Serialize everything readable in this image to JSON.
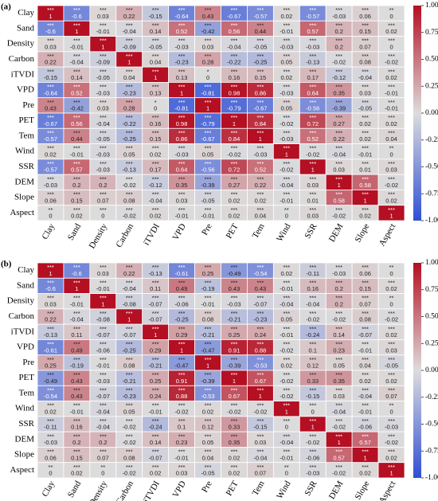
{
  "chart_data": [
    {
      "type": "heatmap",
      "panel_label": "(a)",
      "categories": [
        "Clay",
        "Sand",
        "Density",
        "Carbon",
        "iTVDI",
        "VPD",
        "Pre",
        "PET",
        "Tem",
        "Wind",
        "SSR",
        "DEM",
        "Slope",
        "Aspect"
      ],
      "values": [
        [
          1.0,
          -0.6,
          0.03,
          0.22,
          -0.15,
          -0.64,
          0.43,
          -0.67,
          -0.57,
          0.02,
          -0.57,
          -0.03,
          0.06,
          -0.0
        ],
        [
          -0.6,
          1.0,
          -0.01,
          -0.04,
          0.14,
          0.52,
          -0.42,
          0.56,
          0.44,
          -0.01,
          0.57,
          0.2,
          0.15,
          0.02
        ],
        [
          0.03,
          -0.01,
          1.0,
          -0.09,
          -0.05,
          -0.03,
          0.03,
          -0.04,
          -0.05,
          -0.03,
          -0.03,
          0.2,
          0.07,
          0.0
        ],
        [
          0.22,
          -0.04,
          -0.09,
          1.0,
          0.04,
          -0.23,
          0.28,
          -0.22,
          -0.25,
          0.05,
          -0.13,
          -0.02,
          0.08,
          -0.02
        ],
        [
          -0.15,
          0.14,
          -0.05,
          0.04,
          1.0,
          0.13,
          -0.0,
          0.16,
          0.15,
          0.02,
          0.17,
          -0.12,
          -0.04,
          0.02
        ],
        [
          -0.64,
          0.52,
          -0.03,
          -0.23,
          0.13,
          1.0,
          -0.81,
          0.98,
          0.86,
          -0.03,
          0.64,
          0.35,
          0.03,
          -0.01
        ],
        [
          0.43,
          -0.42,
          0.03,
          0.28,
          -0.0,
          -0.81,
          1.0,
          -0.79,
          -0.67,
          0.05,
          -0.56,
          -0.39,
          -0.05,
          -0.01
        ],
        [
          -0.67,
          0.56,
          -0.04,
          -0.22,
          0.16,
          0.98,
          -0.79,
          1.0,
          0.84,
          -0.02,
          0.72,
          0.27,
          0.02,
          0.02
        ],
        [
          -0.57,
          0.44,
          -0.05,
          -0.25,
          0.15,
          0.86,
          -0.67,
          0.84,
          1.0,
          -0.03,
          0.52,
          0.22,
          0.02,
          0.04
        ],
        [
          0.02,
          -0.01,
          -0.03,
          0.05,
          0.02,
          -0.03,
          0.05,
          -0.02,
          -0.03,
          1.0,
          -0.02,
          -0.04,
          -0.01,
          -0.0
        ],
        [
          -0.57,
          0.57,
          -0.03,
          -0.13,
          0.17,
          0.64,
          -0.56,
          0.72,
          0.52,
          -0.02,
          1.0,
          0.03,
          0.01,
          0.03
        ],
        [
          -0.03,
          0.2,
          0.2,
          -0.02,
          -0.12,
          0.35,
          -0.39,
          0.27,
          0.22,
          -0.04,
          0.03,
          1.0,
          0.58,
          -0.02
        ],
        [
          0.06,
          0.15,
          0.07,
          0.08,
          -0.04,
          0.03,
          -0.05,
          0.02,
          0.02,
          -0.01,
          0.01,
          0.58,
          1.0,
          0.02
        ],
        [
          -0.0,
          0.02,
          0.0,
          -0.02,
          0.02,
          -0.01,
          -0.01,
          0.02,
          0.04,
          -0.0,
          0.03,
          -0.02,
          0.02,
          1.0
        ]
      ],
      "stars": [
        [
          "***",
          "***",
          "***",
          "***",
          "***",
          "***",
          "***",
          "***",
          "***",
          "***",
          "***",
          "***",
          "***",
          "**"
        ],
        [
          "***",
          "***",
          "***",
          "***",
          "***",
          "***",
          "***",
          "***",
          "***",
          "***",
          "***",
          "***",
          "***",
          "***"
        ],
        [
          "***",
          "***",
          "***",
          "***",
          "***",
          "***",
          "***",
          "***",
          "***",
          "***",
          "***",
          "***",
          "***",
          "***"
        ],
        [
          "***",
          "***",
          "***",
          "***",
          "***",
          "***",
          "***",
          "***",
          "***",
          "***",
          "***",
          "***",
          "***",
          "***"
        ],
        [
          "***",
          "***",
          "***",
          "***",
          "***",
          "***",
          "*",
          "***",
          "***",
          "***",
          "***",
          "***",
          "***",
          "***"
        ],
        [
          "***",
          "***",
          "***",
          "***",
          "***",
          "***",
          "***",
          "***",
          "***",
          "***",
          "***",
          "***",
          "***",
          "***"
        ],
        [
          "***",
          "***",
          "***",
          "***",
          "*",
          "***",
          "***",
          "***",
          "***",
          "***",
          "***",
          "***",
          "***",
          "***"
        ],
        [
          "***",
          "***",
          "***",
          "***",
          "***",
          "***",
          "***",
          "***",
          "***",
          "***",
          "***",
          "***",
          "***",
          "***"
        ],
        [
          "***",
          "***",
          "***",
          "***",
          "***",
          "***",
          "***",
          "***",
          "***",
          "***",
          "***",
          "***",
          "***",
          "***"
        ],
        [
          "***",
          "***",
          "***",
          "***",
          "***",
          "***",
          "***",
          "***",
          "***",
          "***",
          "***",
          "***",
          "***",
          "**"
        ],
        [
          "***",
          "***",
          "***",
          "***",
          "***",
          "***",
          "***",
          "***",
          "***",
          "***",
          "***",
          "***",
          "***",
          "***"
        ],
        [
          "***",
          "***",
          "***",
          "***",
          "***",
          "***",
          "***",
          "***",
          "***",
          "***",
          "***",
          "***",
          "***",
          "***"
        ],
        [
          "***",
          "***",
          "***",
          "***",
          "***",
          "***",
          "***",
          "***",
          "***",
          "***",
          "***",
          "***",
          "***",
          "***"
        ],
        [
          "**",
          "***",
          "***",
          "***",
          "***",
          "***",
          "***",
          "***",
          "***",
          "**",
          "***",
          "***",
          "***",
          "***"
        ]
      ],
      "zlim": [
        -1,
        1
      ],
      "zticks": [
        {
          "value": 1,
          "label": "1.00"
        },
        {
          "value": 0.75,
          "label": "0.75"
        },
        {
          "value": 0.5,
          "label": "0.50"
        },
        {
          "value": 0.25,
          "label": "0.25"
        },
        {
          "value": 0,
          "label": "0.00"
        },
        {
          "value": -0.25,
          "label": "-0.25"
        },
        {
          "value": -0.5,
          "label": "-0.50"
        },
        {
          "value": -0.75,
          "label": "-0.75"
        },
        {
          "value": -1,
          "label": "-1.00"
        }
      ],
      "colormap": [
        "#2f4fd6",
        "#dddcdc",
        "#b40f22"
      ]
    },
    {
      "type": "heatmap",
      "panel_label": "(b)",
      "categories": [
        "Clay",
        "Sand",
        "Density",
        "Carbon",
        "iTVDI",
        "VPD",
        "Pre",
        "PET",
        "Tem",
        "Wind",
        "SSR",
        "DEM",
        "Slope",
        "Aspect"
      ],
      "values": [
        [
          1.0,
          -0.6,
          0.03,
          0.22,
          -0.13,
          -0.61,
          0.25,
          -0.49,
          -0.54,
          0.02,
          -0.11,
          -0.03,
          0.06,
          -0.0
        ],
        [
          -0.6,
          1.0,
          -0.01,
          -0.04,
          0.11,
          0.49,
          -0.19,
          0.43,
          0.43,
          -0.01,
          0.16,
          0.2,
          0.15,
          0.02
        ],
        [
          0.03,
          -0.01,
          1.0,
          -0.08,
          -0.07,
          -0.06,
          -0.01,
          -0.03,
          -0.07,
          -0.04,
          -0.04,
          0.2,
          0.07,
          0.0
        ],
        [
          0.22,
          -0.04,
          -0.08,
          1.0,
          -0.07,
          -0.25,
          0.08,
          -0.21,
          -0.23,
          0.05,
          -0.02,
          -0.02,
          0.08,
          -0.02
        ],
        [
          -0.13,
          0.11,
          -0.07,
          -0.07,
          1.0,
          0.29,
          -0.21,
          0.25,
          0.24,
          -0.01,
          -0.24,
          0.14,
          -0.07,
          0.02
        ],
        [
          -0.61,
          0.49,
          -0.06,
          -0.25,
          0.29,
          1.0,
          -0.47,
          0.91,
          0.88,
          -0.02,
          0.1,
          0.23,
          -0.01,
          0.03
        ],
        [
          0.25,
          -0.19,
          -0.01,
          0.08,
          -0.21,
          -0.47,
          1.0,
          -0.39,
          -0.53,
          0.02,
          0.12,
          0.05,
          0.04,
          -0.05
        ],
        [
          -0.49,
          0.43,
          -0.03,
          -0.21,
          0.25,
          0.91,
          -0.39,
          1.0,
          0.67,
          -0.02,
          0.33,
          0.35,
          0.02,
          0.02
        ],
        [
          -0.54,
          0.43,
          -0.07,
          -0.23,
          0.24,
          0.88,
          -0.53,
          0.67,
          1.0,
          -0.02,
          -0.15,
          0.03,
          -0.04,
          0.07
        ],
        [
          0.02,
          -0.01,
          -0.04,
          0.05,
          -0.01,
          -0.02,
          0.02,
          -0.02,
          -0.02,
          1.0,
          0.0,
          -0.04,
          -0.01,
          -0.0
        ],
        [
          -0.11,
          0.16,
          -0.04,
          -0.02,
          -0.24,
          0.1,
          0.12,
          0.33,
          -0.15,
          0.0,
          1.0,
          -0.02,
          -0.06,
          -0.03
        ],
        [
          -0.03,
          0.2,
          0.2,
          -0.02,
          0.14,
          0.23,
          0.05,
          0.35,
          0.03,
          -0.04,
          -0.02,
          1.0,
          0.57,
          -0.02
        ],
        [
          0.06,
          0.15,
          0.07,
          0.08,
          -0.07,
          -0.01,
          0.04,
          0.02,
          -0.04,
          -0.01,
          -0.06,
          0.57,
          1.0,
          0.02
        ],
        [
          -0.0,
          0.02,
          0.0,
          -0.02,
          0.02,
          0.03,
          -0.05,
          0.02,
          0.07,
          -0.0,
          -0.03,
          -0.02,
          0.02,
          1.0
        ]
      ],
      "stars": [
        [
          "***",
          "***",
          "***",
          "***",
          "***",
          "***",
          "***",
          "***",
          "***",
          "***",
          "***",
          "***",
          "***",
          "**"
        ],
        [
          "***",
          "***",
          "***",
          "***",
          "***",
          "***",
          "***",
          "***",
          "***",
          "***",
          "***",
          "***",
          "***",
          "***"
        ],
        [
          "***",
          "***",
          "***",
          "***",
          "***",
          "***",
          "***",
          "***",
          "***",
          "***",
          "***",
          "***",
          "***",
          "**"
        ],
        [
          "***",
          "***",
          "***",
          "***",
          "***",
          "***",
          "***",
          "***",
          "***",
          "***",
          "***",
          "***",
          "***",
          "***"
        ],
        [
          "***",
          "***",
          "***",
          "***",
          "***",
          "***",
          "***",
          "***",
          "***",
          "***",
          "***",
          "***",
          "***",
          "***"
        ],
        [
          "***",
          "***",
          "***",
          "***",
          "***",
          "***",
          "***",
          "***",
          "***",
          "***",
          "***",
          "***",
          "***",
          "***"
        ],
        [
          "***",
          "***",
          "***",
          "***",
          "***",
          "***",
          "***",
          "***",
          "***",
          "***",
          "***",
          "***",
          "***",
          "***"
        ],
        [
          "***",
          "***",
          "***",
          "***",
          "***",
          "***",
          "***",
          "***",
          "***",
          "***",
          "***",
          "***",
          "***",
          "***"
        ],
        [
          "***",
          "***",
          "***",
          "***",
          "***",
          "***",
          "***",
          "***",
          "***",
          "***",
          "***",
          "***",
          "***",
          "***"
        ],
        [
          "***",
          "***",
          "***",
          "***",
          "***",
          "***",
          "***",
          "***",
          "***",
          "***",
          "***",
          "***",
          "***",
          "**"
        ],
        [
          "***",
          "***",
          "***",
          "***",
          "***",
          "***",
          "***",
          "***",
          "***",
          "***",
          "***",
          "***",
          "***",
          "***"
        ],
        [
          "***",
          "***",
          "***",
          "***",
          "***",
          "***",
          "***",
          "***",
          "***",
          "***",
          "***",
          "***",
          "***",
          "***"
        ],
        [
          "***",
          "***",
          "***",
          "***",
          "***",
          "***",
          "***",
          "***",
          "***",
          "***",
          "***",
          "***",
          "***",
          "***"
        ],
        [
          "**",
          "***",
          "**",
          "***",
          "***",
          "***",
          "***",
          "***",
          "***",
          "**",
          "***",
          "***",
          "***",
          "***"
        ]
      ],
      "zlim": [
        -1,
        1
      ],
      "zticks": [
        {
          "value": 1,
          "label": "1.00"
        },
        {
          "value": 0.75,
          "label": "0.75"
        },
        {
          "value": 0.5,
          "label": "0.50"
        },
        {
          "value": 0.25,
          "label": "0.25"
        },
        {
          "value": 0,
          "label": "0.00"
        },
        {
          "value": -0.25,
          "label": "-0.25"
        },
        {
          "value": -0.5,
          "label": "-0.50"
        },
        {
          "value": -0.75,
          "label": "-0.75"
        },
        {
          "value": -1,
          "label": "-1.00"
        }
      ],
      "colormap": [
        "#2f4fd6",
        "#dddcdc",
        "#b40f22"
      ]
    }
  ]
}
